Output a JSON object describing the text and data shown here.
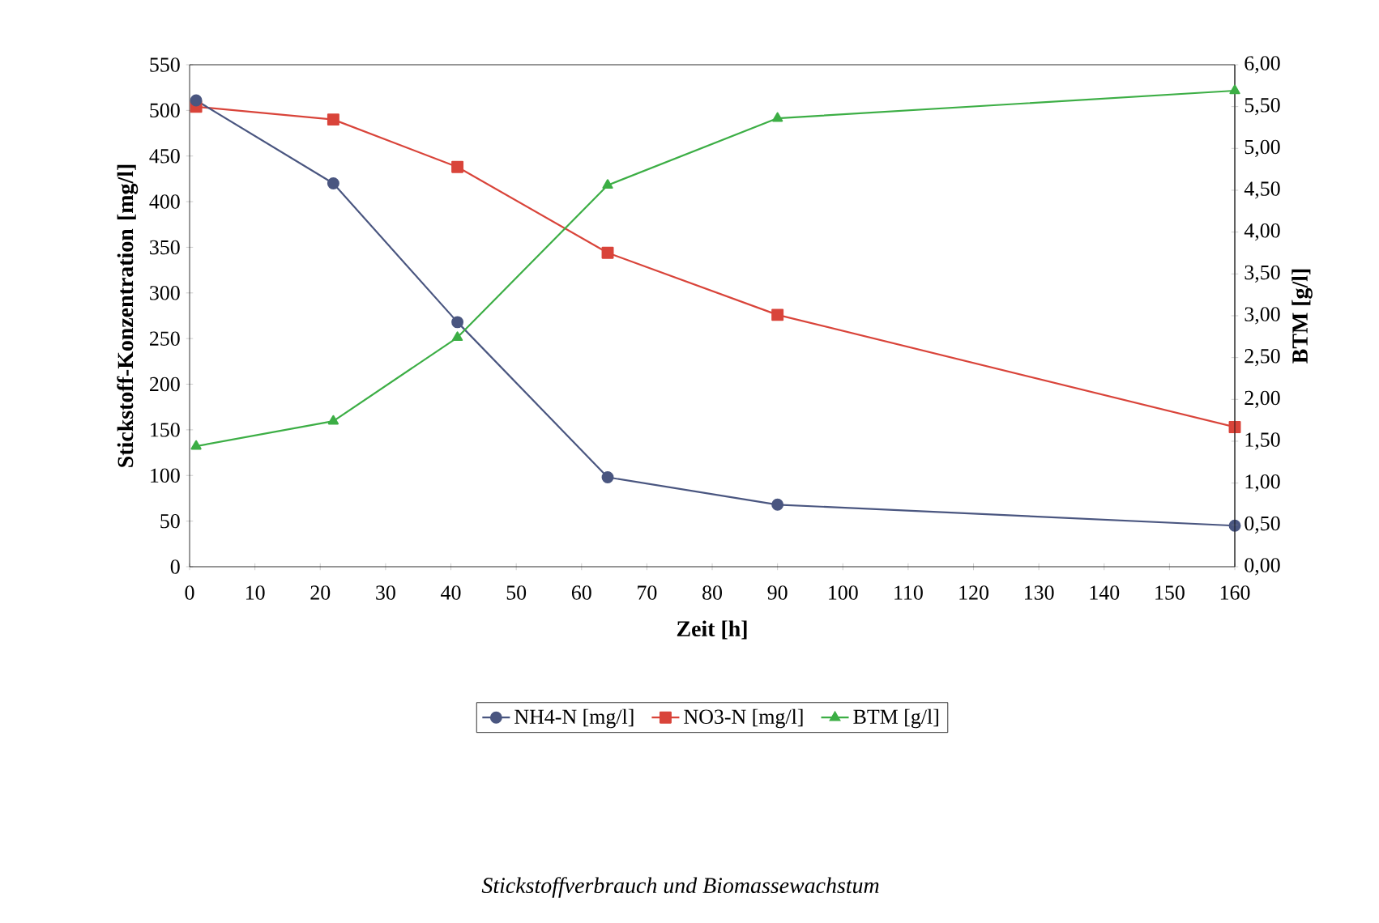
{
  "chart_data": {
    "type": "line",
    "xlabel": "Zeit [h]",
    "ylabel": "Stickstoff-Konzentration [mg/l]",
    "y2label": "BTM [g/l]",
    "x": [
      1,
      22,
      41,
      64,
      90,
      160
    ],
    "series": [
      {
        "name": "NH4-N [mg/l]",
        "color": "#4a5680",
        "marker": "circle",
        "values": [
          511,
          420,
          268,
          98,
          68,
          45
        ]
      },
      {
        "name": "NO3-N [mg/l]",
        "color": "#d9443a",
        "marker": "square",
        "values": [
          504,
          490,
          438,
          344,
          276,
          153
        ]
      },
      {
        "name": "BTM [g/l]",
        "color": "#3cae45",
        "marker": "triangle",
        "axis": "y2",
        "values": [
          1.44,
          1.74,
          2.74,
          4.56,
          5.36,
          5.69
        ]
      }
    ],
    "xlim": [
      0,
      160
    ],
    "xticks": [
      0,
      10,
      20,
      30,
      40,
      50,
      60,
      70,
      80,
      90,
      100,
      110,
      120,
      130,
      140,
      150,
      160
    ],
    "ylim": [
      0,
      550
    ],
    "yticks": [
      0,
      50,
      100,
      150,
      200,
      250,
      300,
      350,
      400,
      450,
      500,
      550
    ],
    "y2lim": [
      0,
      6
    ],
    "y2ticks": [
      {
        "value": 0,
        "label": "0,00"
      },
      {
        "value": 0.5,
        "label": "0,50"
      },
      {
        "value": 1,
        "label": "1,00"
      },
      {
        "value": 1.5,
        "label": "1,50"
      },
      {
        "value": 2,
        "label": "2,00"
      },
      {
        "value": 2.5,
        "label": "2,50"
      },
      {
        "value": 3,
        "label": "3,00"
      },
      {
        "value": 3.5,
        "label": "3,50"
      },
      {
        "value": 4,
        "label": "4,00"
      },
      {
        "value": 4.5,
        "label": "4,50"
      },
      {
        "value": 5,
        "label": "5,00"
      },
      {
        "value": 5.5,
        "label": "5,50"
      },
      {
        "value": 6,
        "label": "6,00"
      }
    ],
    "legend": "bottom",
    "grid": false,
    "line_style": "solid",
    "annotations": [
      "Stickstoffverbrauch und Biomassewachstum"
    ]
  }
}
